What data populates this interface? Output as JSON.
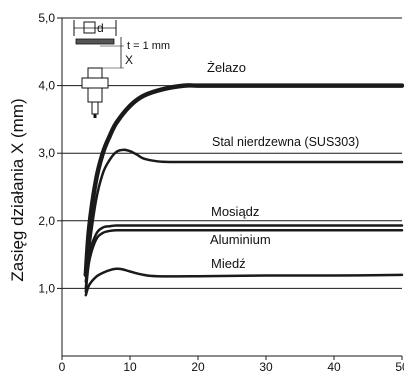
{
  "chart_data": {
    "type": "line",
    "title": "",
    "ylabel": "Zasięg działania X (mm)",
    "xlabel": "",
    "xlim": [
      0,
      50
    ],
    "ylim": [
      0,
      5.0
    ],
    "x_ticks": [
      "0",
      "10",
      "20",
      "30",
      "40",
      "50"
    ],
    "x_tick_values": [
      0,
      10,
      20,
      30,
      40,
      50
    ],
    "y_ticks": [
      "1,0",
      "2,0",
      "3,0",
      "4,0",
      "5,0"
    ],
    "y_tick_values": [
      1,
      2,
      3,
      4,
      5
    ],
    "grid": "horizontal",
    "line_color": "#1a1a1a",
    "series": [
      {
        "name": "Żelazo",
        "x": [
          3.5,
          4,
          5,
          6,
          7,
          8,
          10,
          12,
          15,
          18,
          20,
          25,
          30,
          40,
          50
        ],
        "y": [
          1.2,
          1.9,
          2.6,
          3.0,
          3.25,
          3.45,
          3.7,
          3.85,
          3.95,
          4.0,
          4.0,
          4.0,
          4.0,
          4.0,
          4.0
        ]
      },
      {
        "name": "Stal nierdzewna (SUS303)",
        "x": [
          3.5,
          4,
          5,
          6,
          7,
          8,
          9,
          10,
          11,
          12,
          14,
          16,
          20,
          30,
          40,
          50
        ],
        "y": [
          1.1,
          1.6,
          2.3,
          2.7,
          2.9,
          3.02,
          3.05,
          3.03,
          2.98,
          2.92,
          2.88,
          2.87,
          2.87,
          2.87,
          2.87,
          2.87
        ]
      },
      {
        "name": "Mosiądz",
        "x": [
          3.5,
          4,
          5,
          6,
          7,
          8,
          10,
          15,
          20,
          30,
          40,
          50
        ],
        "y": [
          1.0,
          1.5,
          1.8,
          1.9,
          1.92,
          1.93,
          1.93,
          1.93,
          1.93,
          1.93,
          1.93,
          1.93
        ]
      },
      {
        "name": "Aluminium",
        "x": [
          3.5,
          4,
          5,
          6,
          7,
          8,
          10,
          15,
          20,
          30,
          40,
          50
        ],
        "y": [
          0.95,
          1.4,
          1.72,
          1.82,
          1.85,
          1.86,
          1.86,
          1.86,
          1.86,
          1.86,
          1.86,
          1.86
        ]
      },
      {
        "name": "Miedź",
        "x": [
          3.5,
          4,
          5,
          6,
          7,
          8,
          9,
          10,
          12,
          14,
          20,
          30,
          40,
          50
        ],
        "y": [
          0.9,
          1.05,
          1.17,
          1.23,
          1.27,
          1.29,
          1.28,
          1.25,
          1.2,
          1.18,
          1.18,
          1.19,
          1.19,
          1.2
        ]
      }
    ],
    "inset": {
      "t_label": "t = 1 mm",
      "d_label": "d",
      "x_label": "X"
    }
  }
}
